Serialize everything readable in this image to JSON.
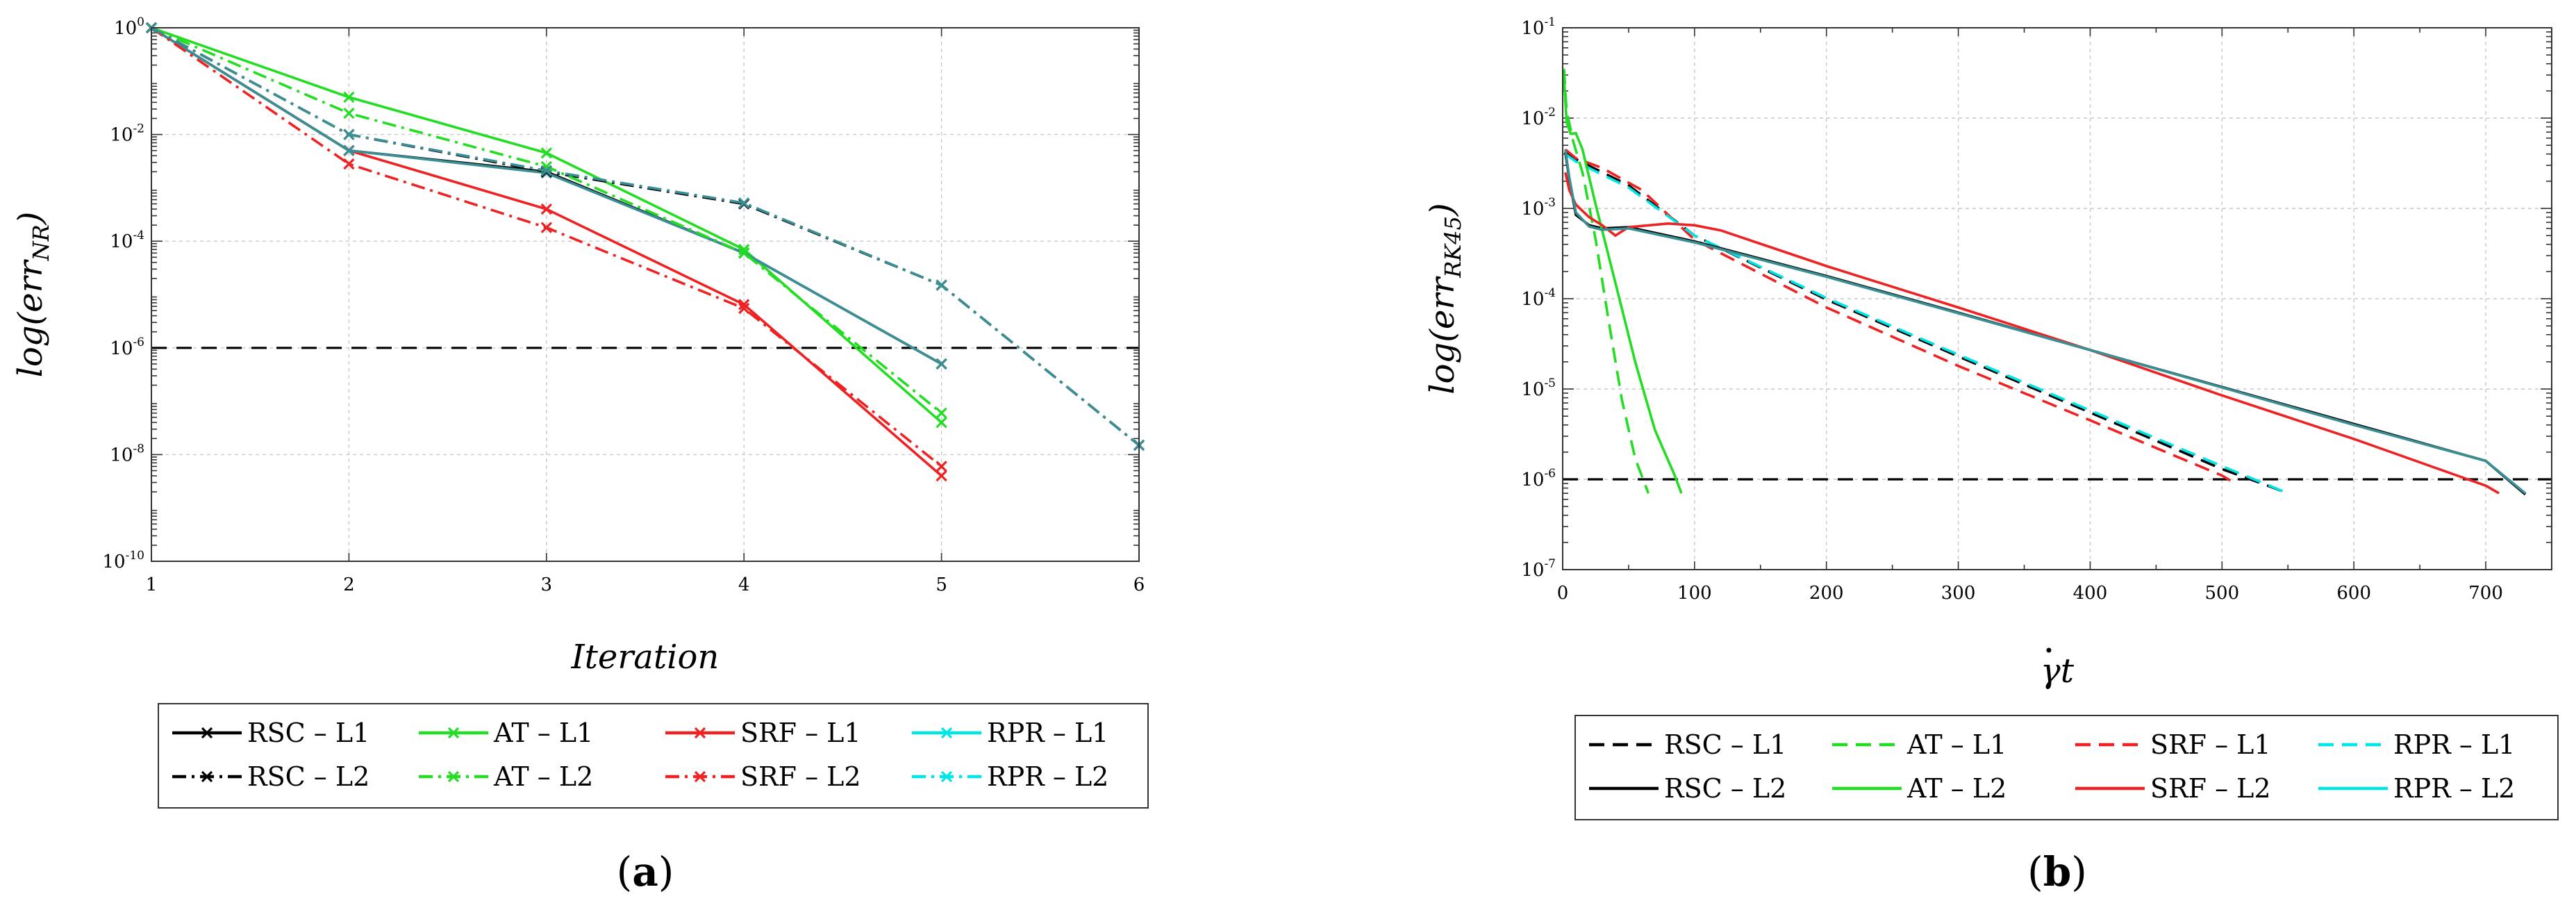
{
  "colors": {
    "RSC": "#000000",
    "AT": "#22dd22",
    "SRF": "#ee2222",
    "RPR": "#00e5e5",
    "teal": "#3a8f95"
  },
  "chart_data": [
    {
      "type": "line",
      "yscale": "log",
      "panel_label": "a",
      "xlabel": "Iteration",
      "ylabel": "log(err_NR)",
      "ylabel_main": "log(err",
      "ylabel_sub": "NR",
      "ylabel_close": ")",
      "xlim": [
        1,
        6
      ],
      "ylim": [
        1e-10,
        1
      ],
      "x_ticks": [
        "1",
        "2",
        "3",
        "4",
        "5",
        "6"
      ],
      "y_ticks": [
        {
          "base": "10",
          "exp": "0",
          "value": 1
        },
        {
          "base": "10",
          "exp": "-2",
          "value": 0.01
        },
        {
          "base": "10",
          "exp": "-4",
          "value": 0.0001
        },
        {
          "base": "10",
          "exp": "-6",
          "value": 1e-06
        },
        {
          "base": "10",
          "exp": "-8",
          "value": 1e-08
        },
        {
          "base": "10",
          "exp": "-10",
          "value": 1e-10
        }
      ],
      "threshold": 1e-06,
      "series": [
        {
          "name": "RSC – L1",
          "group": "RSC",
          "style": "solid",
          "marker": "x",
          "x": [
            1,
            2,
            3,
            4,
            5
          ],
          "y": [
            1,
            0.005,
            0.002,
            6e-05,
            5e-07
          ]
        },
        {
          "name": "AT – L1",
          "group": "AT",
          "style": "solid",
          "marker": "x",
          "x": [
            1,
            2,
            3,
            4,
            5
          ],
          "y": [
            1,
            0.05,
            0.0045,
            7e-05,
            4e-08
          ]
        },
        {
          "name": "SRF – L1",
          "group": "SRF",
          "style": "solid",
          "marker": "x",
          "x": [
            1,
            2,
            3,
            4,
            5
          ],
          "y": [
            1,
            0.005,
            0.0004,
            6.5e-06,
            4e-09
          ]
        },
        {
          "name": "RPR – L1",
          "group": "RPR",
          "style": "solid",
          "marker": "x",
          "x": [
            1,
            2,
            3,
            4,
            5
          ],
          "y": [
            1,
            0.005,
            0.0019,
            6e-05,
            5e-07
          ]
        },
        {
          "name": "RSC – L2",
          "group": "RSC",
          "style": "dashdot",
          "marker": "x",
          "x": [
            1,
            2,
            3,
            4,
            5,
            6
          ],
          "y": [
            1,
            0.01,
            0.002,
            0.0005,
            1.5e-05,
            1.5e-08
          ]
        },
        {
          "name": "AT – L2",
          "group": "AT",
          "style": "dashdot",
          "marker": "x",
          "x": [
            1,
            2,
            3,
            4,
            5
          ],
          "y": [
            1,
            0.025,
            0.0025,
            6e-05,
            6e-08
          ]
        },
        {
          "name": "SRF – L2",
          "group": "SRF",
          "style": "dashdot",
          "marker": "x",
          "x": [
            1,
            2,
            3,
            4,
            5
          ],
          "y": [
            1,
            0.0028,
            0.00018,
            5.5e-06,
            6e-09
          ]
        },
        {
          "name": "RPR – L2",
          "group": "RPR",
          "style": "dashdot",
          "marker": "x",
          "x": [
            1,
            2,
            3,
            4,
            5,
            6
          ],
          "y": [
            1,
            0.01,
            0.0021,
            0.00052,
            1.5e-05,
            1.5e-08
          ]
        }
      ]
    },
    {
      "type": "line",
      "yscale": "log",
      "panel_label": "b",
      "xlabel": "γ̇t",
      "xlabel_gamma": "γ",
      "xlabel_t": "t",
      "ylabel": "log(err_RK45)",
      "ylabel_main": "log(err",
      "ylabel_sub": "RK45",
      "ylabel_close": ")",
      "xlim": [
        0,
        750
      ],
      "ylim": [
        1e-07,
        0.1
      ],
      "x_ticks": [
        "0",
        "100",
        "200",
        "300",
        "400",
        "500",
        "600",
        "700"
      ],
      "y_ticks": [
        {
          "base": "10",
          "exp": "-1",
          "value": 0.1
        },
        {
          "base": "10",
          "exp": "-2",
          "value": 0.01
        },
        {
          "base": "10",
          "exp": "-3",
          "value": 0.001
        },
        {
          "base": "10",
          "exp": "-4",
          "value": 0.0001
        },
        {
          "base": "10",
          "exp": "-5",
          "value": 1e-05
        },
        {
          "base": "10",
          "exp": "-6",
          "value": 1e-06
        },
        {
          "base": "10",
          "exp": "-7",
          "value": 1e-07
        }
      ],
      "threshold": 1e-06,
      "series": [
        {
          "name": "RSC – L1",
          "group": "RSC",
          "style": "dashed",
          "x": [
            2,
            10,
            50,
            100,
            200,
            300,
            400,
            500,
            548
          ],
          "y": [
            0.0042,
            0.0035,
            0.0018,
            0.0005,
            9.8e-05,
            2.3e-05,
            5.5e-06,
            1.3e-06,
            7.2e-07
          ]
        },
        {
          "name": "AT – L1",
          "group": "AT",
          "style": "dashed",
          "x": [
            1,
            3,
            8,
            15,
            25,
            35,
            45,
            55,
            65
          ],
          "y": [
            0.035,
            0.012,
            0.0055,
            0.0025,
            0.00045,
            5.5e-05,
            7.5e-06,
            1.7e-06,
            7e-07
          ]
        },
        {
          "name": "SRF – L1",
          "group": "SRF",
          "style": "dashed",
          "x": [
            2,
            10,
            30,
            60,
            100,
            200,
            300,
            400,
            500,
            510
          ],
          "y": [
            0.0045,
            0.0036,
            0.0028,
            0.0016,
            0.00045,
            8e-05,
            1.8e-05,
            4.5e-06,
            1.1e-06,
            9e-07
          ]
        },
        {
          "name": "RPR – L1",
          "group": "RPR",
          "style": "dashed",
          "x": [
            2,
            10,
            50,
            100,
            200,
            300,
            400,
            500,
            550
          ],
          "y": [
            0.004,
            0.0033,
            0.0017,
            0.0005,
            0.000102,
            2.4e-05,
            5.8e-06,
            1.4e-06,
            7e-07
          ]
        },
        {
          "name": "RSC – L2",
          "group": "RSC",
          "style": "solid",
          "x": [
            2,
            5,
            10,
            20,
            30,
            50,
            100,
            200,
            300,
            400,
            500,
            600,
            700,
            730
          ],
          "y": [
            0.0042,
            0.0021,
            0.00085,
            0.00065,
            0.0006,
            0.00062,
            0.00043,
            0.000178,
            7e-05,
            2.7e-05,
            1.05e-05,
            4.1e-06,
            1.6e-06,
            6.8e-07
          ]
        },
        {
          "name": "AT – L2",
          "group": "AT",
          "style": "solid",
          "x": [
            1,
            3,
            6,
            10,
            15,
            25,
            40,
            55,
            70,
            85,
            90
          ],
          "y": [
            0.028,
            0.009,
            0.0067,
            0.0068,
            0.0045,
            0.0011,
            0.00015,
            2e-05,
            3.5e-06,
            1.1e-06,
            7e-07
          ]
        },
        {
          "name": "SRF – L2",
          "group": "SRF",
          "style": "solid",
          "x": [
            2,
            5,
            10,
            20,
            30,
            40,
            50,
            80,
            100,
            120,
            200,
            300,
            400,
            500,
            600,
            700,
            710
          ],
          "y": [
            0.0025,
            0.0016,
            0.0011,
            0.0008,
            0.00065,
            0.0005,
            0.00062,
            0.00068,
            0.00065,
            0.00057,
            0.00023,
            8e-05,
            2.7e-05,
            8.5e-06,
            2.8e-06,
            8.5e-07,
            7e-07
          ]
        },
        {
          "name": "RPR – L2",
          "group": "RPR",
          "style": "solid",
          "x": [
            2,
            5,
            10,
            20,
            30,
            50,
            100,
            200,
            300,
            400,
            500,
            600,
            700,
            730
          ],
          "y": [
            0.0045,
            0.0022,
            0.0009,
            0.00063,
            0.00058,
            0.0006,
            0.00042,
            0.000175,
            6.9e-05,
            2.7e-05,
            1.04e-05,
            4e-06,
            1.6e-06,
            7e-07
          ]
        }
      ]
    }
  ],
  "legend_a": [
    {
      "label": "RSC – L1",
      "group": "RSC",
      "style": "solid",
      "marker": true
    },
    {
      "label": "AT – L1",
      "group": "AT",
      "style": "solid",
      "marker": true
    },
    {
      "label": "SRF – L1",
      "group": "SRF",
      "style": "solid",
      "marker": true
    },
    {
      "label": "RPR – L1",
      "group": "RPR",
      "style": "solid",
      "marker": true
    },
    {
      "label": "RSC – L2",
      "group": "RSC",
      "style": "dashdot",
      "marker": true
    },
    {
      "label": "AT – L2",
      "group": "AT",
      "style": "dashdot",
      "marker": true
    },
    {
      "label": "SRF – L2",
      "group": "SRF",
      "style": "dashdot",
      "marker": true
    },
    {
      "label": "RPR – L2",
      "group": "RPR",
      "style": "dashdot",
      "marker": true
    }
  ],
  "legend_b": [
    {
      "label": "RSC – L1",
      "group": "RSC",
      "style": "dashed",
      "marker": false
    },
    {
      "label": "AT – L1",
      "group": "AT",
      "style": "dashed",
      "marker": false
    },
    {
      "label": "SRF – L1",
      "group": "SRF",
      "style": "dashed",
      "marker": false
    },
    {
      "label": "RPR – L1",
      "group": "RPR",
      "style": "dashed",
      "marker": false
    },
    {
      "label": "RSC – L2",
      "group": "RSC",
      "style": "solid",
      "marker": false
    },
    {
      "label": "AT – L2",
      "group": "AT",
      "style": "solid",
      "marker": false
    },
    {
      "label": "SRF – L2",
      "group": "SRF",
      "style": "solid",
      "marker": false
    },
    {
      "label": "RPR – L2",
      "group": "RPR",
      "style": "solid",
      "marker": false
    }
  ],
  "panel_labels": {
    "a_open": "(",
    "a": "a",
    "a_close": ")",
    "b_open": "(",
    "b": "b",
    "b_close": ")"
  }
}
